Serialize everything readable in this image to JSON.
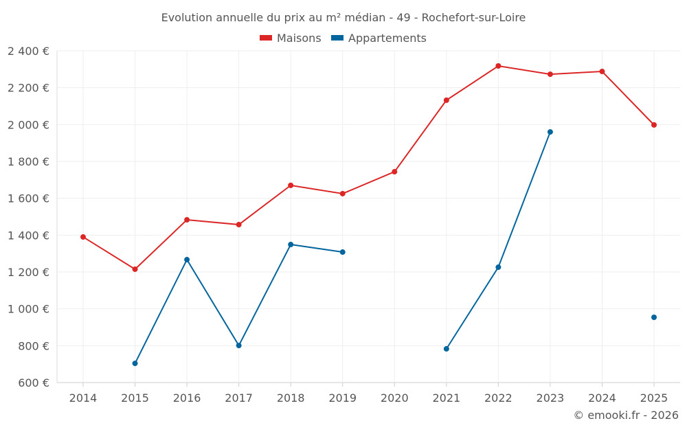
{
  "chart_data": {
    "type": "line",
    "title": "Evolution annuelle du prix au m² médian - 49 - Rochefort-sur-Loire",
    "x": [
      "2014",
      "2015",
      "2016",
      "2017",
      "2018",
      "2019",
      "2020",
      "2021",
      "2022",
      "2023",
      "2024",
      "2025"
    ],
    "yticks": [
      "600 €",
      "800 €",
      "1 000 €",
      "1 200 €",
      "1 400 €",
      "1 600 €",
      "1 800 €",
      "2 000 €",
      "2 200 €",
      "2 400 €"
    ],
    "ylim": [
      600,
      2400
    ],
    "grid": true,
    "legend_position": "top-center",
    "series": [
      {
        "name": "Maisons",
        "color": "#dc2626",
        "values": [
          1390,
          1215,
          1483,
          1457,
          1670,
          1625,
          1744,
          2132,
          2318,
          2273,
          2288,
          1998
        ]
      },
      {
        "name": "Appartements",
        "color": "#02659e",
        "values": [
          null,
          704,
          1267,
          801,
          1349,
          1308,
          null,
          783,
          1226,
          1960,
          null,
          954
        ]
      }
    ]
  },
  "credit": "© emooki.fr - 2026"
}
